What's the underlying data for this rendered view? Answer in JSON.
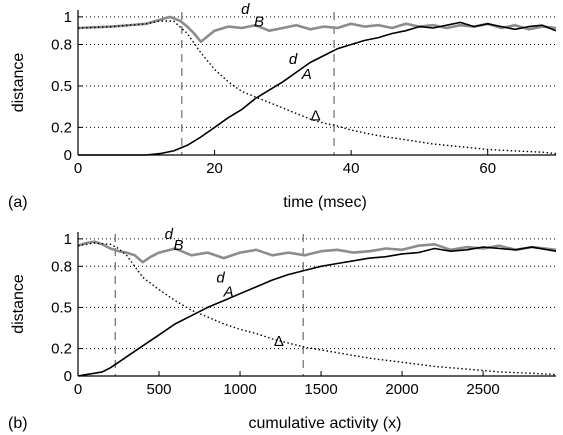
{
  "chart_data": [
    {
      "type": "line",
      "panel_label": "(a)",
      "xlabel": "time (msec)",
      "ylabel": "distance",
      "xlim": [
        0,
        70
      ],
      "ylim": [
        0,
        1.05
      ],
      "xticks": [
        0,
        20,
        40,
        60
      ],
      "yticks": [
        0,
        0.2,
        0.5,
        0.8,
        1
      ],
      "ytick_labels": [
        "0",
        "0.2",
        "0.5",
        "0.8",
        "1"
      ],
      "grid": "horizontal dotted at y ticks",
      "vlines": [
        15.2,
        37.5
      ],
      "series": [
        {
          "key": "dB",
          "color": "#8c8c8c",
          "style": "solid-thick",
          "x": [
            0,
            5,
            10,
            12,
            13.5,
            15,
            16,
            17,
            18,
            19,
            20,
            22,
            24,
            26,
            28,
            30,
            32,
            34,
            36,
            38,
            40,
            42,
            44,
            46,
            48,
            50,
            52,
            54,
            56,
            58,
            60,
            62,
            64,
            66,
            68,
            70
          ],
          "y": [
            0.92,
            0.93,
            0.95,
            0.98,
            1.0,
            0.97,
            0.93,
            0.88,
            0.82,
            0.86,
            0.9,
            0.93,
            0.92,
            0.94,
            0.9,
            0.92,
            0.94,
            0.91,
            0.93,
            0.92,
            0.95,
            0.93,
            0.94,
            0.92,
            0.95,
            0.93,
            0.94,
            0.92,
            0.94,
            0.93,
            0.95,
            0.92,
            0.94,
            0.91,
            0.93,
            0.92
          ]
        },
        {
          "key": "dA",
          "color": "#000000",
          "style": "solid",
          "x": [
            0,
            10,
            12,
            14,
            16,
            18,
            20,
            22,
            24,
            26,
            28,
            30,
            32,
            34,
            36,
            38,
            40,
            42,
            44,
            46,
            48,
            50,
            52,
            54,
            56,
            58,
            60,
            62,
            64,
            66,
            68,
            70
          ],
          "y": [
            0,
            0,
            0.01,
            0.03,
            0.07,
            0.13,
            0.2,
            0.27,
            0.33,
            0.41,
            0.47,
            0.53,
            0.6,
            0.67,
            0.72,
            0.77,
            0.8,
            0.83,
            0.85,
            0.88,
            0.9,
            0.93,
            0.92,
            0.94,
            0.96,
            0.93,
            0.95,
            0.93,
            0.91,
            0.93,
            0.94,
            0.9
          ]
        },
        {
          "key": "delta",
          "color": "#000000",
          "style": "dotted",
          "x": [
            0,
            5,
            10,
            12,
            14,
            16,
            18,
            20,
            22,
            24,
            26,
            28,
            30,
            32,
            34,
            36,
            38,
            40,
            44,
            48,
            52,
            56,
            60,
            64,
            68,
            70
          ],
          "y": [
            0.92,
            0.93,
            0.95,
            0.97,
            0.97,
            0.88,
            0.74,
            0.62,
            0.53,
            0.46,
            0.42,
            0.38,
            0.34,
            0.3,
            0.26,
            0.23,
            0.21,
            0.18,
            0.14,
            0.11,
            0.08,
            0.06,
            0.04,
            0.03,
            0.02,
            0.01
          ]
        }
      ],
      "annotations": [
        {
          "text": "d",
          "x": 24.5,
          "y": 1.02,
          "italic": true
        },
        {
          "text": "B",
          "x": 26.5,
          "y": 0.93,
          "italic": true
        },
        {
          "text": "d",
          "x": 31.5,
          "y": 0.66,
          "italic": true
        },
        {
          "text": "A",
          "x": 33.5,
          "y": 0.55,
          "italic": true
        },
        {
          "text": "Δ",
          "x": 34.8,
          "y": 0.25,
          "italic": false
        }
      ]
    },
    {
      "type": "line",
      "panel_label": "(b)",
      "xlabel": "cumulative activity (x)",
      "ylabel": "distance",
      "xlim": [
        0,
        2950
      ],
      "ylim": [
        0,
        1.05
      ],
      "xticks": [
        0,
        500,
        1000,
        1500,
        2000,
        2500
      ],
      "yticks": [
        0,
        0.2,
        0.5,
        0.8,
        1
      ],
      "ytick_labels": [
        "0",
        "0.2",
        "0.5",
        "0.8",
        "1"
      ],
      "grid": "horizontal dotted at y ticks",
      "vlines": [
        230,
        1390
      ],
      "series": [
        {
          "key": "dB",
          "color": "#8c8c8c",
          "style": "solid-thick",
          "x": [
            0,
            50,
            100,
            150,
            200,
            250,
            300,
            350,
            400,
            450,
            500,
            600,
            700,
            800,
            900,
            1000,
            1100,
            1200,
            1300,
            1400,
            1500,
            1600,
            1700,
            1800,
            1900,
            2000,
            2100,
            2200,
            2300,
            2400,
            2500,
            2600,
            2700,
            2800,
            2950
          ],
          "y": [
            0.95,
            0.97,
            0.98,
            0.96,
            0.93,
            0.91,
            0.9,
            0.88,
            0.83,
            0.87,
            0.9,
            0.93,
            0.88,
            0.9,
            0.86,
            0.9,
            0.92,
            0.88,
            0.9,
            0.88,
            0.91,
            0.92,
            0.9,
            0.91,
            0.93,
            0.92,
            0.95,
            0.96,
            0.92,
            0.94,
            0.93,
            0.95,
            0.92,
            0.94,
            0.92
          ]
        },
        {
          "key": "dA",
          "color": "#000000",
          "style": "solid",
          "x": [
            0,
            50,
            100,
            150,
            200,
            250,
            300,
            400,
            500,
            600,
            700,
            800,
            900,
            1000,
            1100,
            1200,
            1300,
            1400,
            1500,
            1600,
            1700,
            1800,
            1900,
            2000,
            2100,
            2200,
            2300,
            2400,
            2500,
            2600,
            2700,
            2800,
            2950
          ],
          "y": [
            0,
            0.01,
            0.02,
            0.03,
            0.06,
            0.1,
            0.14,
            0.22,
            0.3,
            0.38,
            0.44,
            0.5,
            0.55,
            0.6,
            0.65,
            0.7,
            0.74,
            0.77,
            0.8,
            0.82,
            0.84,
            0.86,
            0.87,
            0.89,
            0.9,
            0.93,
            0.91,
            0.92,
            0.94,
            0.93,
            0.92,
            0.94,
            0.91
          ]
        },
        {
          "key": "delta",
          "color": "#000000",
          "style": "dotted",
          "x": [
            0,
            100,
            200,
            250,
            300,
            350,
            400,
            500,
            600,
            700,
            800,
            900,
            1000,
            1100,
            1200,
            1300,
            1400,
            1600,
            1800,
            2000,
            2200,
            2400,
            2600,
            2800,
            2950
          ],
          "y": [
            0.95,
            0.97,
            0.96,
            0.93,
            0.88,
            0.8,
            0.72,
            0.63,
            0.55,
            0.48,
            0.43,
            0.38,
            0.34,
            0.31,
            0.27,
            0.24,
            0.21,
            0.17,
            0.13,
            0.1,
            0.07,
            0.05,
            0.03,
            0.02,
            0.01
          ]
        }
      ],
      "annotations": [
        {
          "text": "d",
          "x": 560,
          "y": 1.0,
          "italic": true
        },
        {
          "text": "B",
          "x": 620,
          "y": 0.92,
          "italic": true
        },
        {
          "text": "d",
          "x": 880,
          "y": 0.68,
          "italic": true
        },
        {
          "text": "A",
          "x": 930,
          "y": 0.58,
          "italic": true
        },
        {
          "text": "Δ",
          "x": 1240,
          "y": 0.22,
          "italic": false
        }
      ]
    }
  ]
}
